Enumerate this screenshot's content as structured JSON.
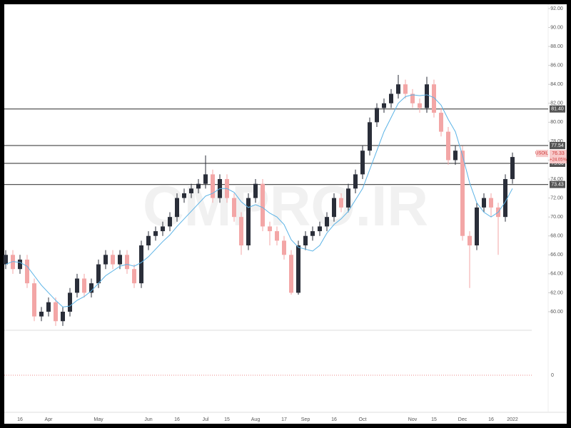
{
  "chart_data": {
    "type": "candlestick",
    "symbol": "USOIL",
    "watermark": "CMPRO.IR",
    "categories": [
      null,
      null,
      "16",
      null,
      null,
      null,
      "Apr",
      null,
      null,
      null,
      null,
      null,
      null,
      "May",
      null,
      null,
      null,
      null,
      null,
      null,
      "Jun",
      null,
      null,
      null,
      "16",
      null,
      null,
      null,
      "Jul",
      null,
      null,
      "15",
      null,
      null,
      null,
      "Aug",
      null,
      null,
      null,
      "17",
      null,
      null,
      "Sep",
      null,
      null,
      null,
      "16",
      null,
      null,
      null,
      "Oct",
      null,
      null,
      null,
      null,
      null,
      null,
      "Nov",
      null,
      null,
      "15",
      null,
      null,
      null,
      "Dec",
      null,
      null,
      null,
      "16",
      null,
      null,
      "2022"
    ],
    "open": [
      65,
      66,
      64.5,
      65.5,
      63,
      59.5,
      60,
      61,
      59,
      60,
      62,
      63.5,
      62,
      63,
      65,
      66,
      65,
      66,
      64.5,
      63,
      67,
      68,
      68.5,
      69,
      70,
      72,
      72.5,
      73,
      73.5,
      74.5,
      72,
      74,
      72,
      70,
      67,
      72,
      73.5,
      69,
      68.5,
      67.5,
      66,
      62,
      67,
      68,
      68.5,
      69,
      70,
      72,
      71,
      73,
      74.5,
      77,
      80,
      81.5,
      82,
      83,
      84,
      83,
      82,
      81.5,
      84,
      81,
      79,
      76,
      77,
      68,
      67,
      71,
      72,
      71,
      70,
      74
    ],
    "high": [
      66.5,
      66.5,
      66,
      66,
      63.5,
      60.5,
      61.5,
      61.5,
      60.5,
      62.5,
      64,
      64,
      63.5,
      65.5,
      66.5,
      66.5,
      66.5,
      66.5,
      65,
      67.5,
      68.5,
      69,
      69.5,
      70.5,
      72.5,
      73,
      73.5,
      74,
      76.5,
      75,
      74.5,
      74.5,
      72.5,
      70.5,
      72.5,
      74,
      74,
      69.5,
      69,
      68,
      66.5,
      67.5,
      68.5,
      69,
      69.5,
      70.5,
      72.5,
      72.5,
      73.5,
      75,
      77.5,
      80.5,
      82,
      82.5,
      83.5,
      85,
      84.5,
      83.5,
      82.5,
      84.8,
      84.5,
      81.5,
      79.5,
      77.5,
      77.5,
      68.5,
      71.5,
      72.5,
      72.5,
      71.5,
      74.5,
      76.8
    ],
    "low": [
      64.5,
      64,
      64,
      62.5,
      59,
      59,
      59.5,
      58.5,
      58.5,
      59.5,
      61.5,
      61.5,
      61.5,
      62.5,
      64.5,
      64.5,
      64.5,
      64,
      62.5,
      62.5,
      66.5,
      67.5,
      68,
      68.5,
      69.5,
      71.5,
      72,
      72.5,
      73,
      71.5,
      71.5,
      71.5,
      69.5,
      66,
      66.5,
      71.5,
      68.5,
      67,
      67,
      65.5,
      61.8,
      61.8,
      66.5,
      67.5,
      68,
      68.5,
      69.5,
      70.5,
      70.5,
      72.5,
      74,
      76.5,
      79.5,
      81,
      81.5,
      82.5,
      82.5,
      81.5,
      81,
      81,
      80.5,
      78.5,
      75.5,
      75.5,
      67.5,
      62.5,
      66.5,
      70.5,
      70,
      66,
      69.5,
      73.5
    ],
    "close": [
      66,
      64.5,
      65.5,
      63,
      59.5,
      60,
      61,
      59,
      60,
      62,
      63.5,
      62,
      63,
      65,
      66,
      65,
      66,
      64.5,
      63,
      67,
      68,
      68.5,
      69,
      70,
      72,
      72.5,
      73,
      73.5,
      74.5,
      72,
      74,
      72,
      70,
      67,
      72,
      73.5,
      69,
      68.5,
      67.5,
      66,
      62,
      67,
      68,
      68.5,
      69,
      70,
      72,
      71,
      73,
      74.5,
      77,
      80,
      81.5,
      82,
      83,
      84,
      83,
      82,
      81.5,
      84,
      81,
      79,
      76,
      77,
      68,
      67,
      71,
      72,
      71,
      70,
      74,
      76.33
    ],
    "up_color": "#2a2e39",
    "down_color": "#f3a6a6",
    "ma": {
      "color": "#5bb3e6",
      "values": [
        65,
        65.3,
        65.2,
        64.8,
        63.8,
        62.8,
        62,
        61.2,
        60.5,
        60.6,
        61.2,
        61.6,
        62.2,
        63,
        63.8,
        64.3,
        64.8,
        65,
        64.8,
        65.2,
        65.8,
        66.6,
        67.4,
        68.1,
        69,
        69.8,
        70.6,
        71.4,
        72.2,
        72.5,
        73,
        73,
        72.6,
        71.6,
        71,
        71.3,
        71,
        70.4,
        70,
        69.2,
        67.6,
        66.8,
        66.6,
        66.4,
        67,
        68.3,
        69.2,
        69.8,
        70.6,
        71.8,
        73,
        75,
        77,
        79,
        80.5,
        82,
        82.7,
        82.9,
        82.8,
        82.9,
        82.6,
        81.8,
        80.3,
        79,
        76.5,
        73.6,
        71.5,
        70.5,
        70,
        70.5,
        71.6,
        73
      ]
    },
    "ylim": [
      58.04,
      92.3
    ],
    "yticks": [
      {
        "value": 60,
        "label": "60.00"
      },
      {
        "value": 62,
        "label": "62.00"
      },
      {
        "value": 64,
        "label": "64.00"
      },
      {
        "value": 66,
        "label": "66.00"
      },
      {
        "value": 68,
        "label": "68.00"
      },
      {
        "value": 70,
        "label": "70.00"
      },
      {
        "value": 72,
        "label": "72.00"
      },
      {
        "value": 74,
        "label": "74.00"
      },
      {
        "value": 76,
        "label": "76.00"
      },
      {
        "value": 78,
        "label": "78.00"
      },
      {
        "value": 80,
        "label": "80.00"
      },
      {
        "value": 82,
        "label": "82.00"
      },
      {
        "value": 84,
        "label": "84.00"
      },
      {
        "value": 86,
        "label": "86.00"
      },
      {
        "value": 88,
        "label": "88.00"
      },
      {
        "value": 90,
        "label": "90.00"
      },
      {
        "value": 92,
        "label": "92.00"
      }
    ],
    "levels": [
      {
        "value": 81.4,
        "label": "81.40"
      },
      {
        "value": 77.54,
        "label": "77.54"
      },
      {
        "value": 75.66,
        "label": "75.66"
      },
      {
        "value": 73.43,
        "label": "73.43"
      }
    ],
    "last": {
      "value": 76.33,
      "change": "+24.05%"
    },
    "lower_pane": {
      "ylim": [
        -1,
        1
      ],
      "yticks": [
        0
      ]
    },
    "grid": false
  }
}
